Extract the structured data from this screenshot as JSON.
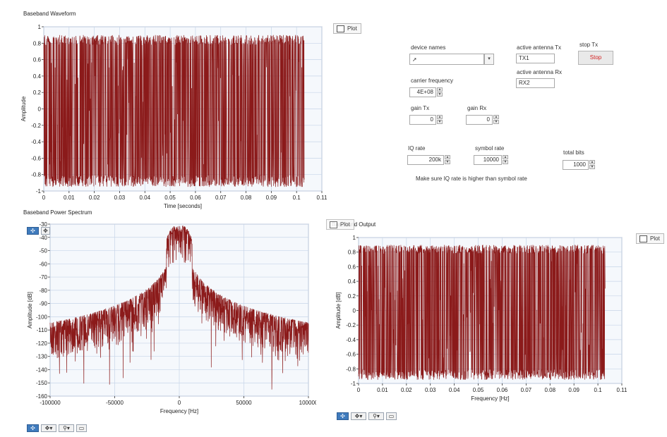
{
  "colors": {
    "trace": "#8b1a1a",
    "plot_bg": "#f5f8fc",
    "grid": "#c7d5e8"
  },
  "plot_button_label": "Plot",
  "controls": {
    "device_names_label": "device names",
    "device_names_value": "",
    "active_antenna_tx_label": "active antenna Tx",
    "active_antenna_tx_value": "TX1",
    "active_antenna_rx_label": "active antenna Rx",
    "active_antenna_rx_value": "RX2",
    "stop_tx_label": "stop Tx",
    "stop_button_label": "Stop",
    "carrier_frequency_label": "carrier frequency",
    "carrier_frequency_value": "4E+08",
    "gain_tx_label": "gain Tx",
    "gain_tx_value": "0",
    "gain_rx_label": "gain Rx",
    "gain_rx_value": "0",
    "iq_rate_label": "IQ rate",
    "iq_rate_value": "200k",
    "symbol_rate_label": "symbol rate",
    "symbol_rate_value": "10000",
    "total_bits_label": "total bits",
    "total_bits_value": "1000",
    "note": "Make sure IQ rate is higher than symbol rate"
  },
  "chart_data": [
    {
      "id": "waveform",
      "type": "line",
      "title": "Baseband Waveform",
      "xlabel": "Time [seconds]",
      "ylabel": "Amplitude",
      "xlim": [
        0,
        0.11
      ],
      "ylim": [
        -1,
        1
      ],
      "x_ticks": [
        "0",
        "0.01",
        "0.02",
        "0.03",
        "0.04",
        "0.05",
        "0.06",
        "0.07",
        "0.08",
        "0.09",
        "0.1",
        "0.11"
      ],
      "y_ticks": [
        "1",
        "0.8",
        "0.6",
        "0.4",
        "0.2",
        "0",
        "-0.2",
        "-0.4",
        "-0.6",
        "-0.8",
        "-1"
      ],
      "series": [
        {
          "x_start": 0,
          "x_end": 0.103,
          "envelope_max": 0.9,
          "envelope_min": -0.95,
          "description": "dense bipolar baseband signal"
        }
      ],
      "grid": true
    },
    {
      "id": "spectrum",
      "type": "line",
      "title": "Baseband Power Spectrum",
      "xlabel": "Frequency [Hz]",
      "ylabel": "Amplitude [dB]",
      "xlim": [
        -100000,
        100000
      ],
      "ylim": [
        -160,
        -30
      ],
      "x_ticks": [
        "-100000",
        "-50000",
        "0",
        "50000",
        "100000"
      ],
      "y_ticks": [
        "-30",
        "-40",
        "-50",
        "-60",
        "-70",
        "-80",
        "-90",
        "-100",
        "-110",
        "-120",
        "-130",
        "-140",
        "-150",
        "-160"
      ],
      "series": [
        {
          "peak_x": 0,
          "peak_y": -31,
          "main_lobe_halfwidth": 10000,
          "floor_near_edges": -105,
          "lowest": -155
        }
      ],
      "grid": true
    },
    {
      "id": "output",
      "type": "line",
      "title": "Baseband Output",
      "xlabel": "Frequency [Hz]",
      "ylabel": "Amplitude [dB]",
      "xlim": [
        0,
        0.11
      ],
      "ylim": [
        -1,
        1
      ],
      "x_ticks": [
        "0",
        "0.01",
        "0.02",
        "0.03",
        "0.04",
        "0.05",
        "0.06",
        "0.07",
        "0.08",
        "0.09",
        "0.1",
        "0.11"
      ],
      "y_ticks": [
        "1",
        "0.8",
        "0.6",
        "0.4",
        "0.2",
        "0",
        "-0.2",
        "-0.4",
        "-0.6",
        "-0.8",
        "-1"
      ],
      "series": [
        {
          "x_start": 0,
          "x_end": 0.103,
          "envelope_max": 0.9,
          "envelope_min": -0.95,
          "description": "dense bipolar baseband signal"
        }
      ],
      "grid": true
    }
  ]
}
